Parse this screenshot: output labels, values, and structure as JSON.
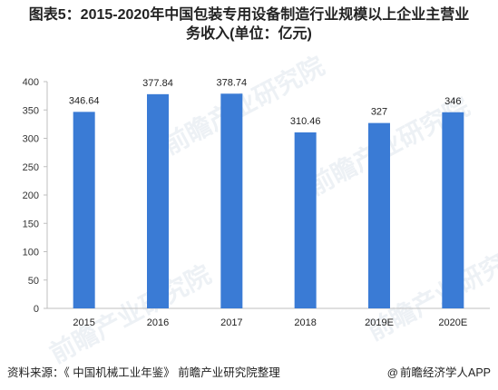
{
  "chart_data": {
    "type": "bar",
    "title": [
      "图表5：2015-2020年中国包装专用设备制造行业规模以上企业主营业",
      "务收入(单位：亿元)"
    ],
    "categories": [
      "2015",
      "2016",
      "2017",
      "2018",
      "2019E",
      "2020E"
    ],
    "values": [
      346.64,
      377.84,
      378.74,
      310.46,
      327,
      346
    ],
    "value_labels": [
      "346.64",
      "377.84",
      "378.74",
      "310.46",
      "327",
      "346"
    ],
    "ylim": [
      0,
      400
    ],
    "yticks": [
      0,
      50,
      100,
      150,
      200,
      250,
      300,
      350,
      400
    ],
    "grid": false,
    "bar_color": "#3a7bd5"
  },
  "footer": {
    "source": "资料来源：《 中国机械工业年鉴》 前瞻产业研究院整理",
    "brand_icon": "@",
    "brand": "前瞻经济学人APP"
  },
  "watermark": {
    "text": "前瞻产业研究院"
  }
}
